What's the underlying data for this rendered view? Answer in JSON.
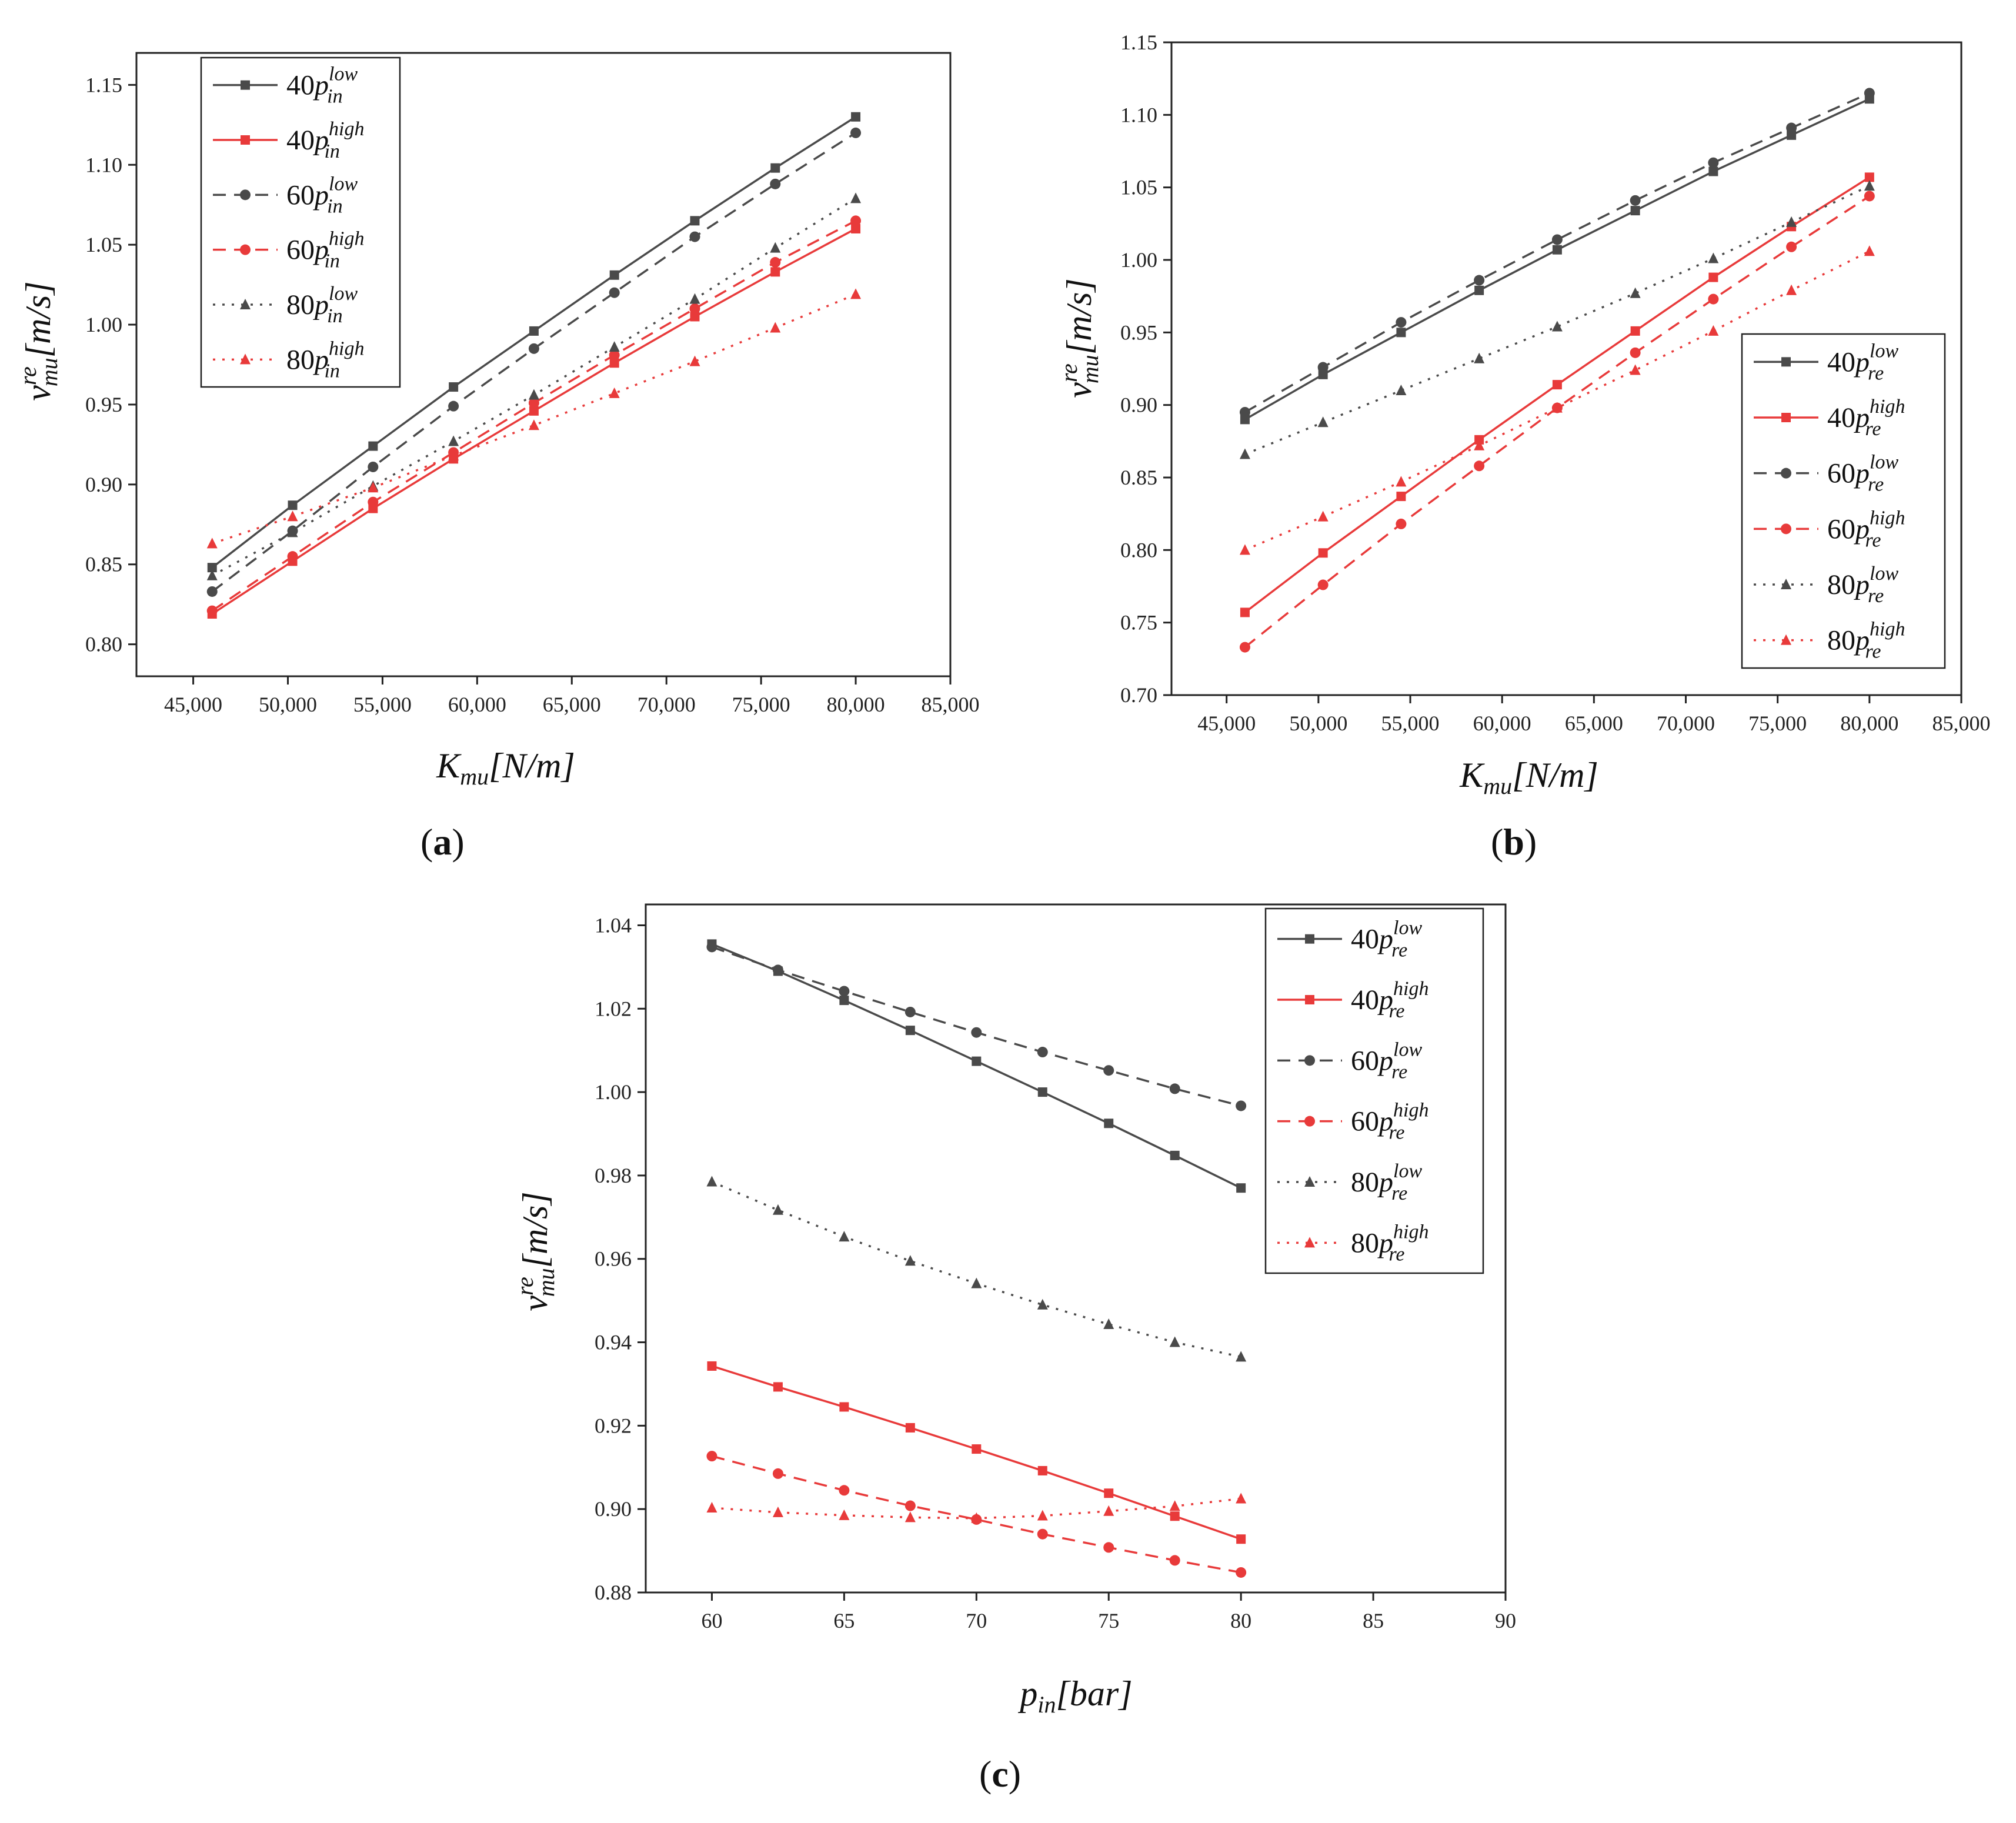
{
  "colors": {
    "dark": "#4a4a4a",
    "red": "#e83a3a",
    "frame": "#222222"
  },
  "captions": {
    "a": "a",
    "b": "b",
    "c": "c"
  },
  "chart_data": [
    {
      "id": "a",
      "type": "line",
      "xlabel": {
        "main": "K",
        "sub": "mu",
        "unit": "[N/m]"
      },
      "ylabel": {
        "main": "v",
        "sup": "re",
        "sub": "mu",
        "unit": "[m/s]"
      },
      "xlim": [
        42000,
        85000
      ],
      "ylim": [
        0.78,
        1.17
      ],
      "xticks": [
        45000,
        50000,
        55000,
        60000,
        65000,
        70000,
        75000,
        80000,
        85000
      ],
      "xtick_labels": [
        "45,000",
        "50,000",
        "55,000",
        "60,000",
        "65,000",
        "70,000",
        "75,000",
        "80,000",
        "85,000"
      ],
      "yticks": [
        0.8,
        0.85,
        0.9,
        0.95,
        1.0,
        1.05,
        1.1,
        1.15
      ],
      "ytick_labels": [
        "0.80",
        "0.85",
        "0.90",
        "0.95",
        "1.00",
        "1.05",
        "1.10",
        "1.15"
      ],
      "legend_position": "top-left",
      "x": [
        46000,
        50250,
        54500,
        58750,
        63000,
        67250,
        71500,
        75750,
        80000
      ],
      "series": [
        {
          "name": "40p_in^low",
          "num": "40",
          "p": "p",
          "sub": "in",
          "sup": "low",
          "color": "dark",
          "dash": "solid",
          "marker": "square",
          "values": [
            0.848,
            0.887,
            0.924,
            0.961,
            0.996,
            1.031,
            1.065,
            1.098,
            1.13
          ]
        },
        {
          "name": "40p_in^high",
          "num": "40",
          "p": "p",
          "sub": "in",
          "sup": "high",
          "color": "red",
          "dash": "solid",
          "marker": "square",
          "values": [
            0.819,
            0.852,
            0.885,
            0.916,
            0.946,
            0.976,
            1.005,
            1.033,
            1.06
          ]
        },
        {
          "name": "60p_in^low",
          "num": "60",
          "p": "p",
          "sub": "in",
          "sup": "low",
          "color": "dark",
          "dash": "dashed",
          "marker": "circle",
          "values": [
            0.833,
            0.871,
            0.911,
            0.949,
            0.985,
            1.02,
            1.055,
            1.088,
            1.12
          ]
        },
        {
          "name": "60p_in^high",
          "num": "60",
          "p": "p",
          "sub": "in",
          "sup": "high",
          "color": "red",
          "dash": "dashed",
          "marker": "circle",
          "values": [
            0.821,
            0.855,
            0.889,
            0.92,
            0.951,
            0.981,
            1.01,
            1.039,
            1.065
          ]
        },
        {
          "name": "80p_in^low",
          "num": "80",
          "p": "p",
          "sub": "in",
          "sup": "low",
          "color": "dark",
          "dash": "dotted",
          "marker": "triangle",
          "values": [
            0.843,
            0.87,
            0.899,
            0.927,
            0.956,
            0.986,
            1.016,
            1.048,
            1.079
          ]
        },
        {
          "name": "80p_in^high",
          "num": "80",
          "p": "p",
          "sub": "in",
          "sup": "high",
          "color": "red",
          "dash": "dotted",
          "marker": "triangle",
          "values": [
            0.863,
            0.88,
            0.898,
            0.918,
            0.937,
            0.957,
            0.977,
            0.998,
            1.019
          ]
        }
      ]
    },
    {
      "id": "b",
      "type": "line",
      "xlabel": {
        "main": "K",
        "sub": "mu",
        "unit": "[N/m]"
      },
      "ylabel": {
        "main": "v",
        "sup": "re",
        "sub": "mu",
        "unit": "[m/s]"
      },
      "xlim": [
        42000,
        85000
      ],
      "ylim": [
        0.7,
        1.15
      ],
      "xticks": [
        45000,
        50000,
        55000,
        60000,
        65000,
        70000,
        75000,
        80000,
        85000
      ],
      "xtick_labels": [
        "45,000",
        "50,000",
        "55,000",
        "60,000",
        "65,000",
        "70,000",
        "75,000",
        "80,000",
        "85,000"
      ],
      "yticks": [
        0.7,
        0.75,
        0.8,
        0.85,
        0.9,
        0.95,
        1.0,
        1.05,
        1.1,
        1.15
      ],
      "ytick_labels": [
        "0.70",
        "0.75",
        "0.80",
        "0.85",
        "0.90",
        "0.95",
        "1.00",
        "1.05",
        "1.10",
        "1.15"
      ],
      "legend_position": "bottom-right",
      "x": [
        46000,
        50250,
        54500,
        58750,
        63000,
        67250,
        71500,
        75750,
        80000
      ],
      "series": [
        {
          "name": "40p_re^low",
          "num": "40",
          "p": "p",
          "sub": "re",
          "sup": "low",
          "color": "dark",
          "dash": "solid",
          "marker": "square",
          "values": [
            0.89,
            0.921,
            0.95,
            0.979,
            1.007,
            1.034,
            1.061,
            1.086,
            1.111
          ]
        },
        {
          "name": "40p_re^high",
          "num": "40",
          "p": "p",
          "sub": "re",
          "sup": "high",
          "color": "red",
          "dash": "solid",
          "marker": "square",
          "values": [
            0.757,
            0.798,
            0.837,
            0.876,
            0.914,
            0.951,
            0.988,
            1.023,
            1.057
          ]
        },
        {
          "name": "60p_re^low",
          "num": "60",
          "p": "p",
          "sub": "re",
          "sup": "low",
          "color": "dark",
          "dash": "dashed",
          "marker": "circle",
          "values": [
            0.895,
            0.926,
            0.957,
            0.986,
            1.014,
            1.041,
            1.067,
            1.091,
            1.115
          ]
        },
        {
          "name": "60p_re^high",
          "num": "60",
          "p": "p",
          "sub": "re",
          "sup": "high",
          "color": "red",
          "dash": "dashed",
          "marker": "circle",
          "values": [
            0.733,
            0.776,
            0.818,
            0.858,
            0.898,
            0.936,
            0.973,
            1.009,
            1.044
          ]
        },
        {
          "name": "80p_re^low",
          "num": "80",
          "p": "p",
          "sub": "re",
          "sup": "low",
          "color": "dark",
          "dash": "dotted",
          "marker": "triangle",
          "values": [
            0.866,
            0.888,
            0.91,
            0.932,
            0.954,
            0.977,
            1.001,
            1.026,
            1.051
          ]
        },
        {
          "name": "80p_re^high",
          "num": "80",
          "p": "p",
          "sub": "re",
          "sup": "high",
          "color": "red",
          "dash": "dotted",
          "marker": "triangle",
          "values": [
            0.8,
            0.823,
            0.847,
            0.872,
            0.898,
            0.924,
            0.951,
            0.979,
            1.006
          ]
        }
      ]
    },
    {
      "id": "c",
      "type": "line",
      "xlabel": {
        "main": "p",
        "sub": "in",
        "unit": "[bar]"
      },
      "ylabel": {
        "main": "v",
        "sup": "re",
        "sub": "mu",
        "unit": "[m/s]"
      },
      "xlim": [
        57.5,
        90
      ],
      "ylim": [
        0.88,
        1.045
      ],
      "xticks": [
        60,
        65,
        70,
        75,
        80,
        85,
        90
      ],
      "xtick_labels": [
        "60",
        "65",
        "70",
        "75",
        "80",
        "85",
        "90"
      ],
      "yticks": [
        0.88,
        0.9,
        0.92,
        0.94,
        0.96,
        0.98,
        1.0,
        1.02,
        1.04
      ],
      "ytick_labels": [
        "0.88",
        "0.90",
        "0.92",
        "0.94",
        "0.96",
        "0.98",
        "1.00",
        "1.02",
        "1.04"
      ],
      "legend_position": "top-right",
      "x": [
        60,
        62.5,
        65,
        67.5,
        70,
        72.5,
        75,
        77.5,
        80
      ],
      "series": [
        {
          "name": "40p_re^low",
          "num": "40",
          "p": "p",
          "sub": "re",
          "sup": "low",
          "color": "dark",
          "dash": "solid",
          "marker": "square",
          "values": [
            1.0355,
            1.029,
            1.022,
            1.0148,
            1.0074,
            1.0,
            0.9925,
            0.9848,
            0.977
          ]
        },
        {
          "name": "40p_re^high",
          "num": "40",
          "p": "p",
          "sub": "re",
          "sup": "high",
          "color": "red",
          "dash": "solid",
          "marker": "square",
          "values": [
            0.9343,
            0.9293,
            0.9245,
            0.9195,
            0.9144,
            0.9092,
            0.9038,
            0.8983,
            0.8928
          ]
        },
        {
          "name": "60p_re^low",
          "num": "60",
          "p": "p",
          "sub": "re",
          "sup": "low",
          "color": "dark",
          "dash": "dashed",
          "marker": "circle",
          "values": [
            1.0348,
            1.0293,
            1.0242,
            1.0192,
            1.0143,
            1.0096,
            1.0052,
            1.0008,
            0.9967
          ]
        },
        {
          "name": "60p_re^high",
          "num": "60",
          "p": "p",
          "sub": "re",
          "sup": "high",
          "color": "red",
          "dash": "dashed",
          "marker": "circle",
          "values": [
            0.9127,
            0.9085,
            0.9045,
            0.9008,
            0.8975,
            0.894,
            0.8908,
            0.8877,
            0.8848
          ]
        },
        {
          "name": "80p_re^low",
          "num": "80",
          "p": "p",
          "sub": "re",
          "sup": "low",
          "color": "dark",
          "dash": "dotted",
          "marker": "triangle",
          "values": [
            0.9785,
            0.9717,
            0.9653,
            0.9595,
            0.9541,
            0.949,
            0.9443,
            0.94,
            0.9365
          ]
        },
        {
          "name": "80p_re^high",
          "num": "80",
          "p": "p",
          "sub": "re",
          "sup": "high",
          "color": "red",
          "dash": "dotted",
          "marker": "triangle",
          "values": [
            0.9003,
            0.8992,
            0.8985,
            0.898,
            0.8978,
            0.8984,
            0.8995,
            0.9007,
            0.9025
          ]
        }
      ]
    }
  ]
}
